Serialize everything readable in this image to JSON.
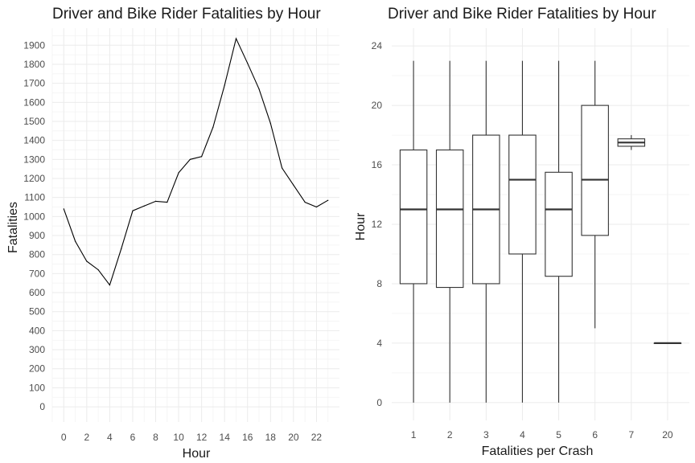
{
  "chart_data": [
    {
      "type": "line",
      "title": "Driver and Bike Rider Fatalities by Hour",
      "xlabel": "Hour",
      "ylabel": "Fatalities",
      "x_ticks": [
        "0",
        "2",
        "4",
        "6",
        "8",
        "10",
        "12",
        "14",
        "16",
        "18",
        "20",
        "22"
      ],
      "y_ticks": [
        "0",
        "100",
        "200",
        "300",
        "400",
        "500",
        "600",
        "700",
        "800",
        "900",
        "1000",
        "1100",
        "1200",
        "1300",
        "1400",
        "1500",
        "1600",
        "1700",
        "1800",
        "1900"
      ],
      "xlim": [
        -1,
        24
      ],
      "ylim": [
        -80,
        1990
      ],
      "grid": true,
      "x": [
        0,
        1,
        2,
        3,
        4,
        5,
        6,
        7,
        8,
        9,
        10,
        11,
        12,
        13,
        14,
        15,
        16,
        17,
        18,
        19,
        20,
        21,
        22,
        23
      ],
      "y": [
        1040,
        870,
        765,
        720,
        640,
        830,
        1030,
        1055,
        1080,
        1075,
        1230,
        1300,
        1315,
        1470,
        1690,
        1935,
        1805,
        1670,
        1490,
        1255,
        1165,
        1075,
        1050,
        1085
      ]
    },
    {
      "type": "box",
      "title": "Driver and Bike Rider Fatalities by Hour",
      "xlabel": "Fatalities per Crash",
      "ylabel": "Hour",
      "categories": [
        "1",
        "2",
        "3",
        "4",
        "5",
        "6",
        "7",
        "20"
      ],
      "y_ticks": [
        "0",
        "4",
        "8",
        "12",
        "16",
        "20",
        "24"
      ],
      "ylim": [
        -1.2,
        25.2
      ],
      "grid": true,
      "boxes": [
        {
          "category": "1",
          "min": 0,
          "q1": 8,
          "median": 13,
          "q3": 17,
          "max": 23
        },
        {
          "category": "2",
          "min": 0,
          "q1": 7.75,
          "median": 13,
          "q3": 17,
          "max": 23
        },
        {
          "category": "3",
          "min": 0,
          "q1": 8,
          "median": 13,
          "q3": 18,
          "max": 23
        },
        {
          "category": "4",
          "min": 0,
          "q1": 10,
          "median": 15,
          "q3": 18,
          "max": 23
        },
        {
          "category": "5",
          "min": 0,
          "q1": 8.5,
          "median": 13,
          "q3": 15.5,
          "max": 23
        },
        {
          "category": "6",
          "min": 5,
          "q1": 11.25,
          "median": 15,
          "q3": 20,
          "max": 23
        },
        {
          "category": "7",
          "min": 17,
          "q1": 17.25,
          "median": 17.5,
          "q3": 17.75,
          "max": 18
        },
        {
          "category": "20",
          "min": 4,
          "q1": 4,
          "median": 4,
          "q3": 4,
          "max": 4
        }
      ]
    }
  ]
}
